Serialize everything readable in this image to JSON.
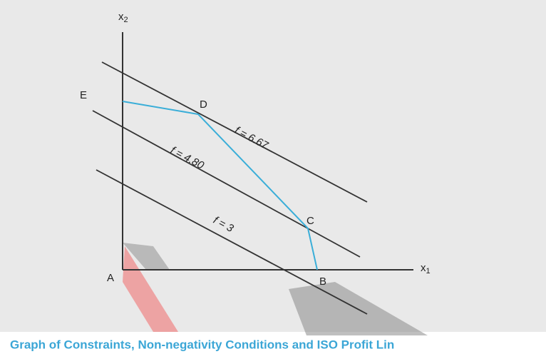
{
  "axes": {
    "y_label": {
      "main": "x",
      "sub": "2"
    },
    "x_label": {
      "main": "x",
      "sub": "1"
    }
  },
  "points": {
    "A": "A",
    "B": "B",
    "C": "C",
    "D": "D",
    "E": "E"
  },
  "iso_lines": [
    "f = 6.67",
    "f = 4.80",
    "f = 3"
  ],
  "caption": "Graph of Constraints, Non-negativity Conditions and  ISO Profit Lin"
}
